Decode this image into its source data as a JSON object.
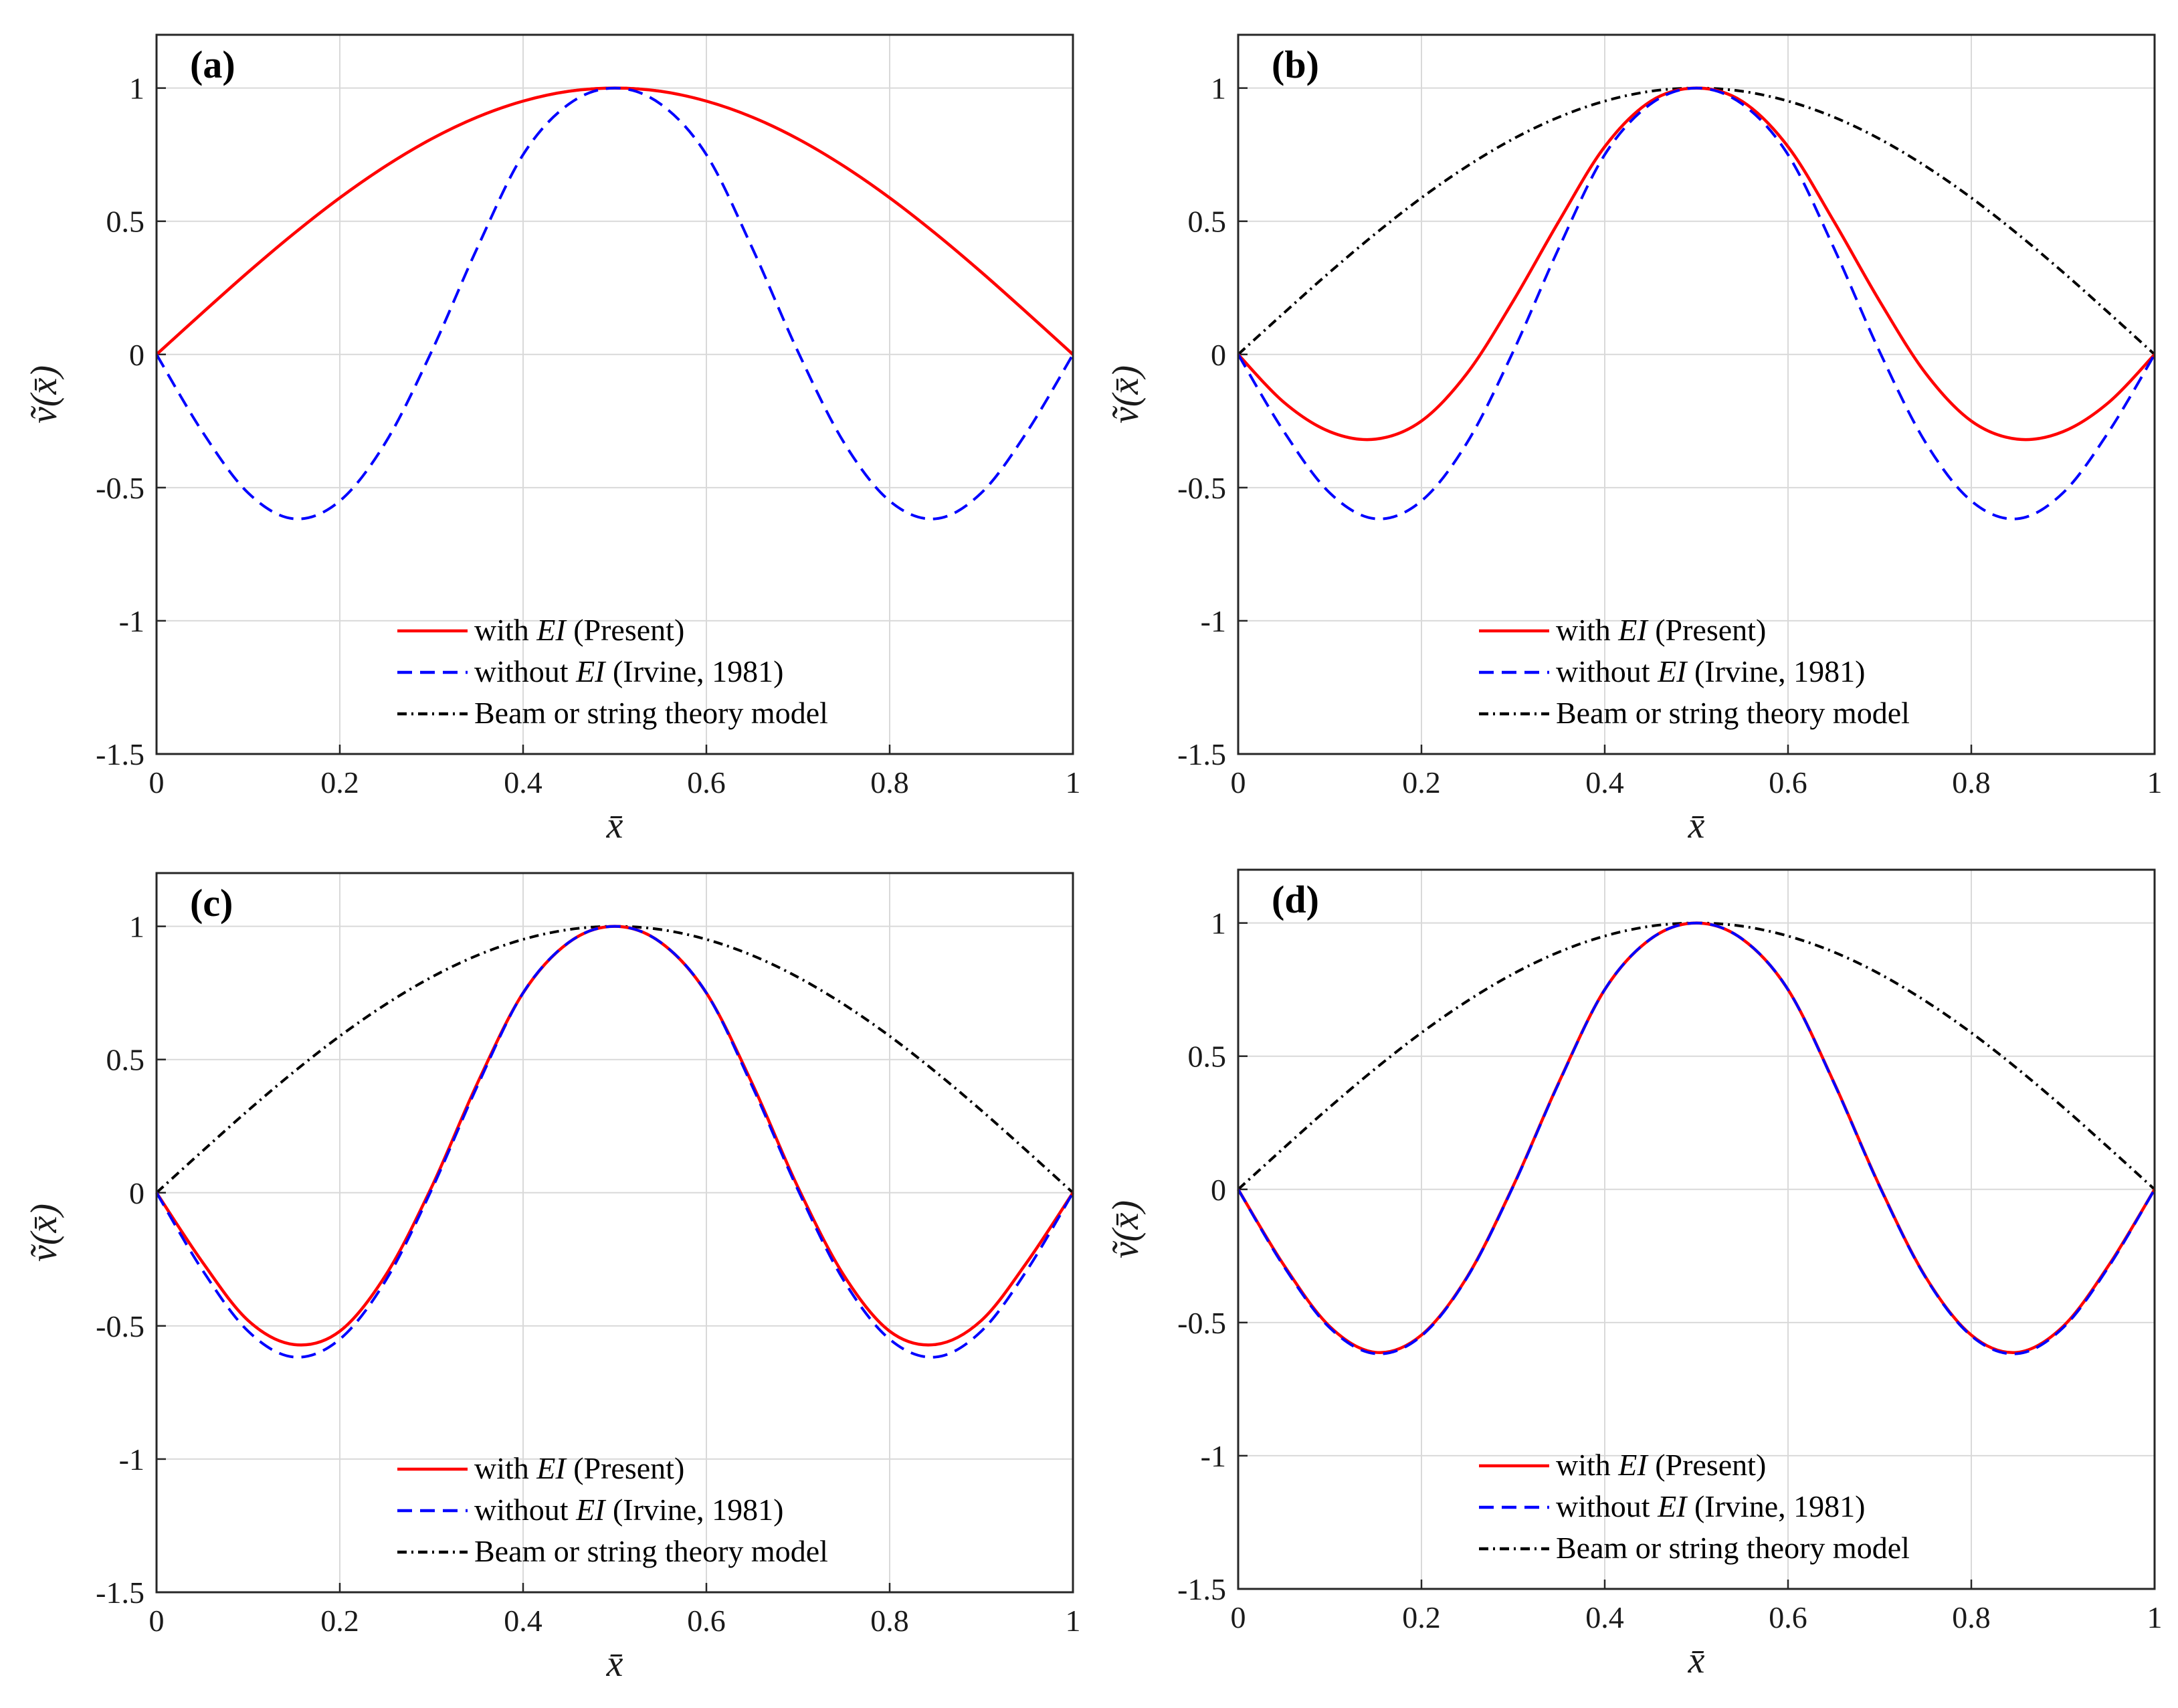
{
  "colors": {
    "present": "#ff0000",
    "irvine": "#0000ff",
    "beam": "#000000",
    "grid": "#d9d9d9",
    "axes": "#262626"
  },
  "axis_labels": {
    "xlabel": "x̄",
    "ylabel": "ṽ(x̄)"
  },
  "legend": {
    "present": {
      "pre": "with ",
      "ital": "EI",
      "post": " (Present)"
    },
    "irvine": {
      "pre": "without ",
      "ital": "EI",
      "post": " (Irvine, 1981)"
    },
    "beam": {
      "pre": "Beam or string theory model",
      "ital": "",
      "post": ""
    }
  },
  "chart_data": [
    {
      "type": "line",
      "label": "(a)",
      "xlabel": "x̄",
      "ylabel": "ṽ(x̄)",
      "xlim": [
        0,
        1
      ],
      "ylim": [
        -1.5,
        1.2
      ],
      "xticks": [
        "0",
        "0.2",
        "0.4",
        "0.6",
        "0.8",
        "1"
      ],
      "yticks": [
        "-1.5",
        "-1",
        "-0.5",
        "0",
        "0.5",
        "1"
      ],
      "grid": true,
      "legend_position": "bottom-center",
      "x": [
        0,
        0.05,
        0.1,
        0.15,
        0.2,
        0.25,
        0.3,
        0.35,
        0.4,
        0.45,
        0.5,
        0.55,
        0.6,
        0.65,
        0.7,
        0.75,
        0.8,
        0.85,
        0.9,
        0.95,
        1
      ],
      "series": [
        {
          "name": "with EI (Present)",
          "style": "solid",
          "values": [
            0,
            0.156,
            0.309,
            0.454,
            0.588,
            0.707,
            0.809,
            0.891,
            0.951,
            0.988,
            1,
            0.988,
            0.951,
            0.891,
            0.809,
            0.707,
            0.588,
            0.454,
            0.309,
            0.156,
            0
          ]
        },
        {
          "name": "without EI (Irvine, 1981)",
          "style": "dashed",
          "values": [
            0,
            -0.29,
            -0.52,
            -0.617,
            -0.55,
            -0.33,
            0.01,
            0.4,
            0.75,
            0.94,
            1,
            0.94,
            0.75,
            0.4,
            0.01,
            -0.33,
            -0.55,
            -0.617,
            -0.52,
            -0.29,
            0
          ]
        },
        {
          "name": "Beam or string theory model",
          "style": "dashdot",
          "values": [
            0,
            0.156,
            0.309,
            0.454,
            0.588,
            0.707,
            0.809,
            0.891,
            0.951,
            0.988,
            1,
            0.988,
            0.951,
            0.891,
            0.809,
            0.707,
            0.588,
            0.454,
            0.309,
            0.156,
            0
          ]
        }
      ]
    },
    {
      "type": "line",
      "label": "(b)",
      "xlabel": "x̄",
      "ylabel": "ṽ(x̄)",
      "xlim": [
        0,
        1
      ],
      "ylim": [
        -1.5,
        1.2
      ],
      "xticks": [
        "0",
        "0.2",
        "0.4",
        "0.6",
        "0.8",
        "1"
      ],
      "yticks": [
        "-1.5",
        "-1",
        "-0.5",
        "0",
        "0.5",
        "1"
      ],
      "grid": true,
      "legend_position": "bottom-center",
      "x": [
        0,
        0.05,
        0.1,
        0.15,
        0.2,
        0.25,
        0.3,
        0.35,
        0.4,
        0.45,
        0.5,
        0.55,
        0.6,
        0.65,
        0.7,
        0.75,
        0.8,
        0.85,
        0.9,
        0.95,
        1
      ],
      "series": [
        {
          "name": "with EI (Present)",
          "style": "solid",
          "values": [
            0,
            -0.18,
            -0.29,
            -0.318,
            -0.25,
            -0.07,
            0.2,
            0.5,
            0.78,
            0.95,
            1,
            0.95,
            0.78,
            0.5,
            0.2,
            -0.07,
            -0.25,
            -0.318,
            -0.29,
            -0.18,
            0
          ]
        },
        {
          "name": "without EI (Irvine, 1981)",
          "style": "dashed",
          "values": [
            0,
            -0.29,
            -0.52,
            -0.617,
            -0.55,
            -0.33,
            0.01,
            0.4,
            0.75,
            0.94,
            1,
            0.94,
            0.75,
            0.4,
            0.01,
            -0.33,
            -0.55,
            -0.617,
            -0.52,
            -0.29,
            0
          ]
        },
        {
          "name": "Beam or string theory model",
          "style": "dashdot",
          "values": [
            0,
            0.156,
            0.309,
            0.454,
            0.588,
            0.707,
            0.809,
            0.891,
            0.951,
            0.988,
            1,
            0.988,
            0.951,
            0.891,
            0.809,
            0.707,
            0.588,
            0.454,
            0.309,
            0.156,
            0
          ]
        }
      ]
    },
    {
      "type": "line",
      "label": "(c)",
      "xlabel": "x̄",
      "ylabel": "ṽ(x̄)",
      "xlim": [
        0,
        1
      ],
      "ylim": [
        -1.5,
        1.2
      ],
      "xticks": [
        "0",
        "0.2",
        "0.4",
        "0.6",
        "0.8",
        "1"
      ],
      "yticks": [
        "-1.5",
        "-1",
        "-0.5",
        "0",
        "0.5",
        "1"
      ],
      "grid": true,
      "legend_position": "bottom-center",
      "x": [
        0,
        0.05,
        0.1,
        0.15,
        0.2,
        0.25,
        0.3,
        0.35,
        0.4,
        0.45,
        0.5,
        0.55,
        0.6,
        0.65,
        0.7,
        0.75,
        0.8,
        0.85,
        0.9,
        0.95,
        1
      ],
      "series": [
        {
          "name": "with EI (Present)",
          "style": "solid",
          "values": [
            0,
            -0.26,
            -0.48,
            -0.57,
            -0.52,
            -0.31,
            0.02,
            0.41,
            0.75,
            0.94,
            1,
            0.94,
            0.75,
            0.41,
            0.02,
            -0.31,
            -0.52,
            -0.57,
            -0.48,
            -0.26,
            0
          ]
        },
        {
          "name": "without EI (Irvine, 1981)",
          "style": "dashed",
          "values": [
            0,
            -0.29,
            -0.52,
            -0.617,
            -0.55,
            -0.33,
            0.01,
            0.4,
            0.75,
            0.94,
            1,
            0.94,
            0.75,
            0.4,
            0.01,
            -0.33,
            -0.55,
            -0.617,
            -0.52,
            -0.29,
            0
          ]
        },
        {
          "name": "Beam or string theory model",
          "style": "dashdot",
          "values": [
            0,
            0.156,
            0.309,
            0.454,
            0.588,
            0.707,
            0.809,
            0.891,
            0.951,
            0.988,
            1,
            0.988,
            0.951,
            0.891,
            0.809,
            0.707,
            0.588,
            0.454,
            0.309,
            0.156,
            0
          ]
        }
      ]
    },
    {
      "type": "line",
      "label": "(d)",
      "xlabel": "x̄",
      "ylabel": "ṽ(x̄)",
      "xlim": [
        0,
        1
      ],
      "ylim": [
        -1.5,
        1.2
      ],
      "xticks": [
        "0",
        "0.2",
        "0.4",
        "0.6",
        "0.8",
        "1"
      ],
      "yticks": [
        "-1.5",
        "-1",
        "-0.5",
        "0",
        "0.5",
        "1"
      ],
      "grid": true,
      "legend_position": "bottom-center",
      "x": [
        0,
        0.05,
        0.1,
        0.15,
        0.2,
        0.25,
        0.3,
        0.35,
        0.4,
        0.45,
        0.5,
        0.55,
        0.6,
        0.65,
        0.7,
        0.75,
        0.8,
        0.85,
        0.9,
        0.95,
        1
      ],
      "series": [
        {
          "name": "with EI (Present)",
          "style": "solid",
          "values": [
            0,
            -0.285,
            -0.515,
            -0.612,
            -0.547,
            -0.328,
            0.012,
            0.402,
            0.75,
            0.94,
            1,
            0.94,
            0.75,
            0.402,
            0.012,
            -0.328,
            -0.547,
            -0.612,
            -0.515,
            -0.285,
            0
          ]
        },
        {
          "name": "without EI (Irvine, 1981)",
          "style": "dashed",
          "values": [
            0,
            -0.29,
            -0.52,
            -0.617,
            -0.55,
            -0.33,
            0.01,
            0.4,
            0.75,
            0.94,
            1,
            0.94,
            0.75,
            0.4,
            0.01,
            -0.33,
            -0.55,
            -0.617,
            -0.52,
            -0.29,
            0
          ]
        },
        {
          "name": "Beam or string theory model",
          "style": "dashdot",
          "values": [
            0,
            0.156,
            0.309,
            0.454,
            0.588,
            0.707,
            0.809,
            0.891,
            0.951,
            0.988,
            1,
            0.988,
            0.951,
            0.891,
            0.809,
            0.707,
            0.588,
            0.454,
            0.309,
            0.156,
            0
          ]
        }
      ]
    }
  ]
}
